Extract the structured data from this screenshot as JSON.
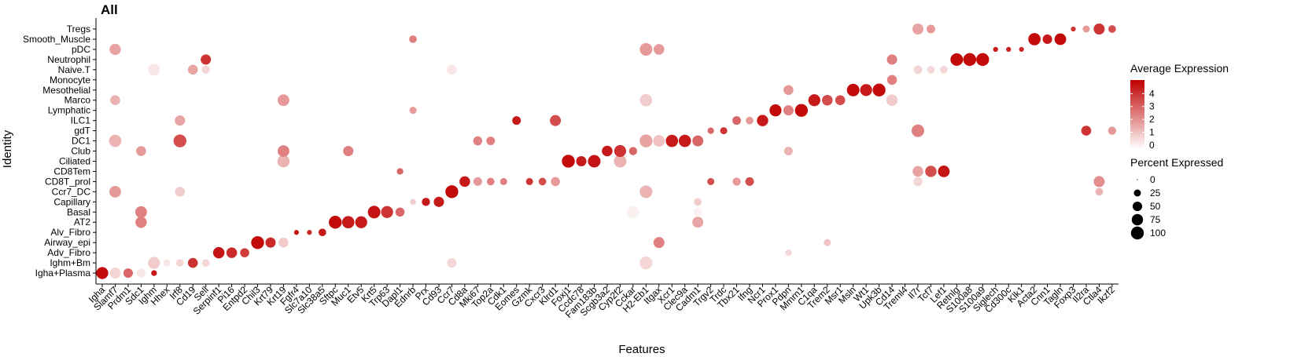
{
  "chart_data": {
    "type": "dotplot",
    "title": "All",
    "xlabel": "Features",
    "ylabel": "Identity",
    "identities": [
      "Tregs",
      "Smooth_Muscle",
      "pDC",
      "Neutrophil",
      "Naive.T",
      "Monocyte",
      "Mesothelial",
      "Marco",
      "Lymphatic",
      "ILC1",
      "gdT",
      "DC1",
      "Club",
      "Ciliated",
      "CD8Tem",
      "CD8T_prol",
      "Ccr7_DC",
      "Capillary",
      "Basal",
      "AT2",
      "Alv_Fibro",
      "Airway_epi",
      "Adv_Fibro",
      "Ighm+Bm",
      "Igha+Plasma"
    ],
    "features": [
      "Igha",
      "Slamf7",
      "Prdm1",
      "Sdc1",
      "Ighm",
      "Hhex",
      "Irf8",
      "Cd19",
      "Sell",
      "Serpinf1",
      "Pi16",
      "Entpd2",
      "Chil3",
      "Krt79",
      "Krt19",
      "Fgfr4",
      "Slc7a10",
      "Slc38a5",
      "Sftpc",
      "Muc1",
      "Etv5",
      "Krt5",
      "Trp63",
      "Dapl1",
      "Ednrb",
      "Prx",
      "Cd93",
      "Ccr7",
      "Cd8a",
      "Mki67",
      "Top2a",
      "Cdk1",
      "Eomes",
      "Gzmk",
      "Cxcr3",
      "Klrd1",
      "Foxj1",
      "Ccdc78",
      "Fam183b",
      "Scgb3a2",
      "Cyp2f2",
      "Cckar",
      "H2-Eb1",
      "Itgax",
      "Xcr1",
      "Clec9a",
      "Cadm1",
      "Trgv2",
      "Trdc",
      "Tbx21",
      "Ifng",
      "Ncr1",
      "Prox1",
      "Pdpn",
      "Mmrn1",
      "C1qa",
      "Trem2",
      "Msr1",
      "Msln",
      "Wt1",
      "Upk3b",
      "Cd14",
      "Treml4",
      "Il7r",
      "Tcf7",
      "Lef1",
      "Retnlg",
      "S100a8",
      "S100a9",
      "Siglech",
      "Cd300c",
      "Klk1",
      "Acta2",
      "Cnn1",
      "Tagln",
      "Foxp3",
      "Il2ra",
      "Ctla4",
      "Ikzf2"
    ],
    "dots": [
      [
        "Igha+Plasma",
        "Igha",
        4.8,
        85
      ],
      [
        "Igha+Plasma",
        "Slamf7",
        0.8,
        70
      ],
      [
        "Igha+Plasma",
        "Prdm1",
        3,
        50
      ],
      [
        "Igha+Plasma",
        "Sdc1",
        0.5,
        40
      ],
      [
        "Igha+Plasma",
        "Ighm",
        4.5,
        15
      ],
      [
        "Ighm+Bm",
        "Ighm",
        1,
        85
      ],
      [
        "Ighm+Bm",
        "Hhex",
        0.5,
        25
      ],
      [
        "Ighm+Bm",
        "Irf8",
        0.8,
        30
      ],
      [
        "Ighm+Bm",
        "Cd19",
        4,
        55
      ],
      [
        "Ighm+Bm",
        "Sell",
        0.8,
        30
      ],
      [
        "Ighm+Bm",
        "Ccr7",
        0.8,
        50
      ],
      [
        "Ighm+Bm",
        "H2-Eb1",
        0.8,
        100
      ],
      [
        "Adv_Fibro",
        "Serpinf1",
        4.6,
        75
      ],
      [
        "Adv_Fibro",
        "Pi16",
        4.2,
        65
      ],
      [
        "Adv_Fibro",
        "Entpd2",
        3.8,
        45
      ],
      [
        "Adv_Fibro",
        "Pdpn",
        0.8,
        20
      ],
      [
        "Airway_epi",
        "Chil3",
        4.8,
        100
      ],
      [
        "Airway_epi",
        "Krt79",
        4.2,
        60
      ],
      [
        "Airway_epi",
        "Krt19",
        1,
        55
      ],
      [
        "Airway_epi",
        "Itgax",
        2.5,
        70
      ],
      [
        "Airway_epi",
        "Trem2",
        1.2,
        25
      ],
      [
        "Alv_Fibro",
        "Fgfr4",
        4.5,
        10
      ],
      [
        "Alv_Fibro",
        "Slc7a10",
        4.2,
        10
      ],
      [
        "Alv_Fibro",
        "Slc38a5",
        4.5,
        30
      ],
      [
        "AT2",
        "Sdc1",
        2.5,
        75
      ],
      [
        "AT2",
        "Sftpc",
        4.8,
        100
      ],
      [
        "AT2",
        "Muc1",
        4.5,
        90
      ],
      [
        "AT2",
        "Etv5",
        4.5,
        85
      ],
      [
        "AT2",
        "Cadm1",
        1.8,
        70
      ],
      [
        "Basal",
        "Sdc1",
        2.5,
        80
      ],
      [
        "Basal",
        "Krt5",
        4.6,
        95
      ],
      [
        "Basal",
        "Trp63",
        4,
        85
      ],
      [
        "Basal",
        "Dapl1",
        3,
        45
      ],
      [
        "Basal",
        "Cckar",
        0.3,
        90
      ],
      [
        "Basal",
        "Cadm1",
        0.3,
        40
      ],
      [
        "Capillary",
        "Ednrb",
        1,
        15
      ],
      [
        "Capillary",
        "Prx",
        4.5,
        35
      ],
      [
        "Capillary",
        "Cd93",
        4.5,
        60
      ],
      [
        "Capillary",
        "Cadm1",
        1,
        30
      ],
      [
        "Ccr7_DC",
        "Slamf7",
        2,
        80
      ],
      [
        "Ccr7_DC",
        "Irf8",
        1,
        55
      ],
      [
        "Ccr7_DC",
        "Ccr7",
        4.8,
        100
      ],
      [
        "Ccr7_DC",
        "H2-Eb1",
        1.5,
        95
      ],
      [
        "Ccr7_DC",
        "Ctla4",
        1.5,
        30
      ],
      [
        "CD8T_prol",
        "Cd8a",
        4.5,
        65
      ],
      [
        "CD8T_prol",
        "Mki67",
        2,
        40
      ],
      [
        "CD8T_prol",
        "Top2a",
        2.5,
        30
      ],
      [
        "CD8T_prol",
        "Cdk1",
        2.5,
        25
      ],
      [
        "CD8T_prol",
        "Gzmk",
        4,
        25
      ],
      [
        "CD8T_prol",
        "Cxcr3",
        3.5,
        30
      ],
      [
        "CD8T_prol",
        "Klrd1",
        2,
        45
      ],
      [
        "CD8T_prol",
        "Trgv2",
        3.5,
        25
      ],
      [
        "CD8T_prol",
        "Tbx21",
        2,
        35
      ],
      [
        "CD8T_prol",
        "Ifng",
        3.5,
        40
      ],
      [
        "CD8T_prol",
        "Il7r",
        0.8,
        45
      ],
      [
        "CD8T_prol",
        "Ctla4",
        2.2,
        70
      ],
      [
        "CD8Tem",
        "Il7r",
        1.8,
        65
      ],
      [
        "CD8Tem",
        "Tcf7",
        3.5,
        75
      ],
      [
        "CD8Tem",
        "Lef1",
        4.6,
        80
      ],
      [
        "CD8Tem",
        "Dapl1",
        3,
        20
      ],
      [
        "Ciliated",
        "Foxj1",
        4.8,
        100
      ],
      [
        "Ciliated",
        "Ccdc78",
        4.5,
        60
      ],
      [
        "Ciliated",
        "Fam183b",
        4.6,
        95
      ],
      [
        "Ciliated",
        "Cyp2f2",
        1.5,
        95
      ],
      [
        "Ciliated",
        "Krt19",
        1.5,
        90
      ],
      [
        "Club",
        "Sdc1",
        2,
        55
      ],
      [
        "Club",
        "Krt19",
        2.5,
        80
      ],
      [
        "Club",
        "Muc1",
        2.5,
        60
      ],
      [
        "Club",
        "Scgb3a2",
        4.5,
        65
      ],
      [
        "Club",
        "Cyp2f2",
        4,
        85
      ],
      [
        "Club",
        "Cckar",
        3,
        35
      ],
      [
        "Club",
        "Pdpn",
        1.5,
        40
      ],
      [
        "DC1",
        "Slamf7",
        1.5,
        90
      ],
      [
        "DC1",
        "Irf8",
        3.5,
        100
      ],
      [
        "DC1",
        "Mki67",
        2.5,
        45
      ],
      [
        "DC1",
        "Top2a",
        2.5,
        40
      ],
      [
        "DC1",
        "H2-Eb1",
        1.8,
        100
      ],
      [
        "DC1",
        "Itgax",
        1.2,
        80
      ],
      [
        "DC1",
        "Xcr1",
        4.5,
        90
      ],
      [
        "DC1",
        "Clec9a",
        4.5,
        90
      ],
      [
        "DC1",
        "Cadm1",
        3,
        70
      ],
      [
        "gdT",
        "Trgv2",
        3,
        20
      ],
      [
        "gdT",
        "Trdc",
        4,
        25
      ],
      [
        "gdT",
        "Il7r",
        2.5,
        95
      ],
      [
        "gdT",
        "Il2ra",
        4,
        55
      ],
      [
        "gdT",
        "Ikzf2",
        2,
        35
      ],
      [
        "ILC1",
        "Eomes",
        4.5,
        40
      ],
      [
        "ILC1",
        "Klrd1",
        3.5,
        70
      ],
      [
        "ILC1",
        "Ncr1",
        4.5,
        75
      ],
      [
        "ILC1",
        "Tbx21",
        3,
        40
      ],
      [
        "ILC1",
        "Irf8",
        1.8,
        60
      ],
      [
        "ILC1",
        "Ifng",
        2,
        30
      ],
      [
        "Lymphatic",
        "Prox1",
        4.8,
        85
      ],
      [
        "Lymphatic",
        "Pdpn",
        2.5,
        60
      ],
      [
        "Lymphatic",
        "Mmrn1",
        4.8,
        100
      ],
      [
        "Lymphatic",
        "Ednrb",
        2,
        25
      ],
      [
        "Marco",
        "Slamf7",
        1.5,
        55
      ],
      [
        "Marco",
        "Krt19",
        2,
        80
      ],
      [
        "Marco",
        "C1qa",
        4.5,
        85
      ],
      [
        "Marco",
        "Trem2",
        3.5,
        65
      ],
      [
        "Marco",
        "Msr1",
        3.5,
        55
      ],
      [
        "Marco",
        "H2-Eb1",
        1,
        90
      ],
      [
        "Marco",
        "Cd14",
        1,
        75
      ],
      [
        "Mesothelial",
        "Msln",
        4.8,
        95
      ],
      [
        "Mesothelial",
        "Wt1",
        4.5,
        85
      ],
      [
        "Mesothelial",
        "Upk3b",
        4.8,
        100
      ],
      [
        "Mesothelial",
        "Pdpn",
        2,
        55
      ],
      [
        "Monocyte",
        "Cd14",
        2.5,
        55
      ],
      [
        "Naive.T",
        "Ighm",
        0.5,
        80
      ],
      [
        "Naive.T",
        "Cd19",
        1.8,
        55
      ],
      [
        "Naive.T",
        "Sell",
        0.8,
        35
      ],
      [
        "Naive.T",
        "Ccr7",
        0.5,
        55
      ],
      [
        "Naive.T",
        "Il7r",
        0.8,
        40
      ],
      [
        "Naive.T",
        "Tcf7",
        0.8,
        30
      ],
      [
        "Naive.T",
        "Lef1",
        0.8,
        30
      ],
      [
        "Neutrophil",
        "Sell",
        4,
        60
      ],
      [
        "Neutrophil",
        "Retnlg",
        4.8,
        95
      ],
      [
        "Neutrophil",
        "S100a8",
        4.8,
        100
      ],
      [
        "Neutrophil",
        "S100a9",
        4.8,
        100
      ],
      [
        "Neutrophil",
        "Cd14",
        2.5,
        60
      ],
      [
        "pDC",
        "Slamf7",
        1.8,
        75
      ],
      [
        "pDC",
        "Siglech",
        4.5,
        10
      ],
      [
        "pDC",
        "Cd300c",
        4.3,
        10
      ],
      [
        "pDC",
        "Klk1",
        4.2,
        10
      ],
      [
        "pDC",
        "H2-Eb1",
        2,
        95
      ],
      [
        "pDC",
        "Itgax",
        2,
        65
      ],
      [
        "Smooth_Muscle",
        "Acta2",
        4.8,
        90
      ],
      [
        "Smooth_Muscle",
        "Cnn1",
        4.5,
        50
      ],
      [
        "Smooth_Muscle",
        "Tagln",
        4.8,
        80
      ],
      [
        "Smooth_Muscle",
        "Ednrb",
        2.5,
        30
      ],
      [
        "Tregs",
        "Il7r",
        1.8,
        70
      ],
      [
        "Tregs",
        "Tcf7",
        2,
        40
      ],
      [
        "Tregs",
        "Foxp3",
        4,
        10
      ],
      [
        "Tregs",
        "Il2ra",
        2,
        25
      ],
      [
        "Tregs",
        "Ctla4",
        4,
        70
      ],
      [
        "Tregs",
        "Ikzf2",
        3.5,
        30
      ]
    ],
    "color_scale": {
      "title": "Average Expression",
      "ticks": [
        0,
        1,
        2,
        3,
        4
      ],
      "low": "#ffffff",
      "high": "#c00000",
      "max": 5
    },
    "size_scale": {
      "title": "Percent Expressed",
      "ticks": [
        0,
        25,
        50,
        75,
        100
      ]
    }
  }
}
